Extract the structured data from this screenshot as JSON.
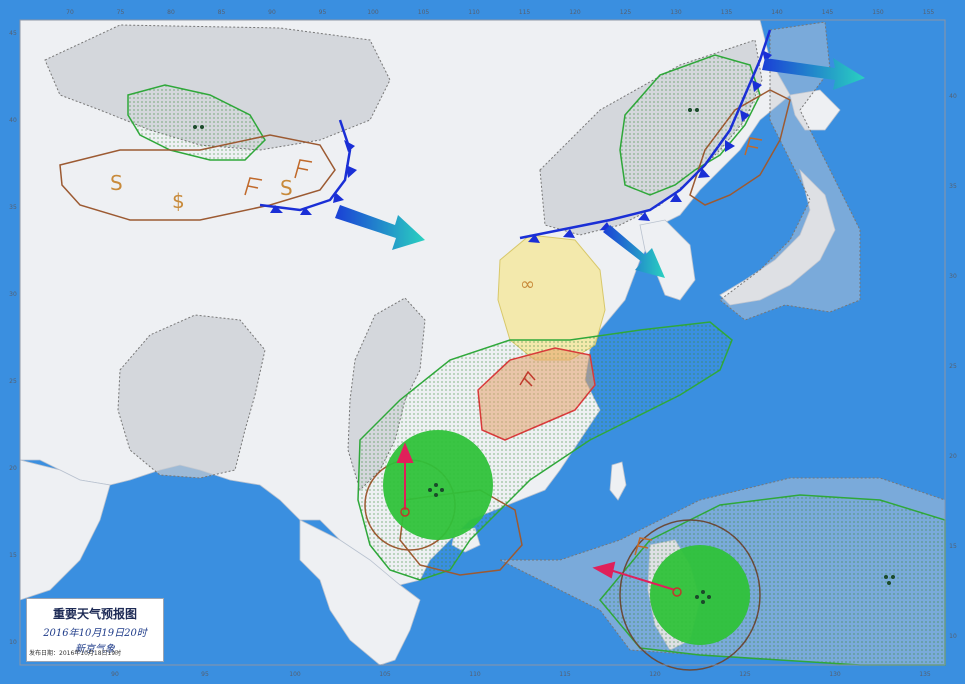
{
  "legend": {
    "title": "重要天气预报图",
    "valid_time": "2016年10月19日20时",
    "org": "新京气象",
    "issued": "发布日期：2016年10月18日19时"
  },
  "axes": {
    "top_lon": [
      "70",
      "75",
      "80",
      "85",
      "90",
      "95",
      "100",
      "105",
      "110",
      "115",
      "120",
      "125",
      "130",
      "135",
      "140",
      "145",
      "150",
      "155"
    ],
    "bottom_lon": [
      "90",
      "95",
      "100",
      "105",
      "110",
      "115",
      "120",
      "125",
      "130",
      "135"
    ],
    "left_lat": [
      "45",
      "40",
      "35",
      "30",
      "25",
      "20",
      "15",
      "10"
    ],
    "right_lat": [
      "40",
      "35",
      "30",
      "25",
      "20",
      "15",
      "10"
    ]
  },
  "colors": {
    "sea": "#3a8fe0",
    "land": "#eef0f3",
    "rain_zone": "#2fa83a",
    "heavy_rain": "#2fc23a",
    "fog_zone": "#f4e79a",
    "wind_zone": "#9c5a32",
    "thunder_zone": "#d83a3a",
    "cold_front": "#1a2fd6",
    "arrow": "#1fb3c4",
    "typhoon_arrow": "#e0205a",
    "haze_zone": "#c9ccd2"
  },
  "symbols": {
    "sand_icon_1": "S",
    "sand_icon_2": "$",
    "sand_icon_3": "S",
    "fog_icon": "∞",
    "rain_dots": "••",
    "rain_dots_2": "•••"
  }
}
